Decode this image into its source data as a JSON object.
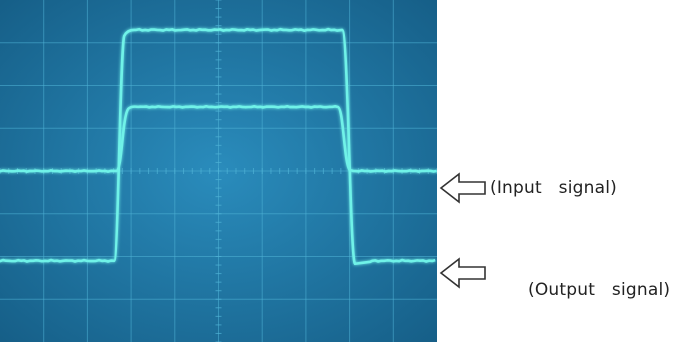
{
  "labels": {
    "input": "(Input   signal)",
    "output": "(Output   signal)"
  },
  "colors": {
    "screen_bg": "#1f7aa8",
    "screen_edge": "#165f88",
    "grid": "#4fb3d6",
    "trace": "#6ff2e8",
    "trace_glow": "#b8fff8",
    "arrow_stroke": "#333333"
  },
  "icons": [
    "left-arrow-icon"
  ],
  "grid": {
    "divisions_x": 10,
    "divisions_y": 8
  },
  "traces": {
    "input_signal": {
      "shape": "square-pulse",
      "low_div": 4.0,
      "high_div": 2.5,
      "rise_start_div": 2.75,
      "fall_end_div": 8.0
    },
    "output_signal": {
      "shape": "square-pulse-with-overshoot",
      "low_div": 6.1,
      "high_div": 0.7,
      "rise_start_div": 2.75,
      "fall_end_div": 8.15
    }
  }
}
